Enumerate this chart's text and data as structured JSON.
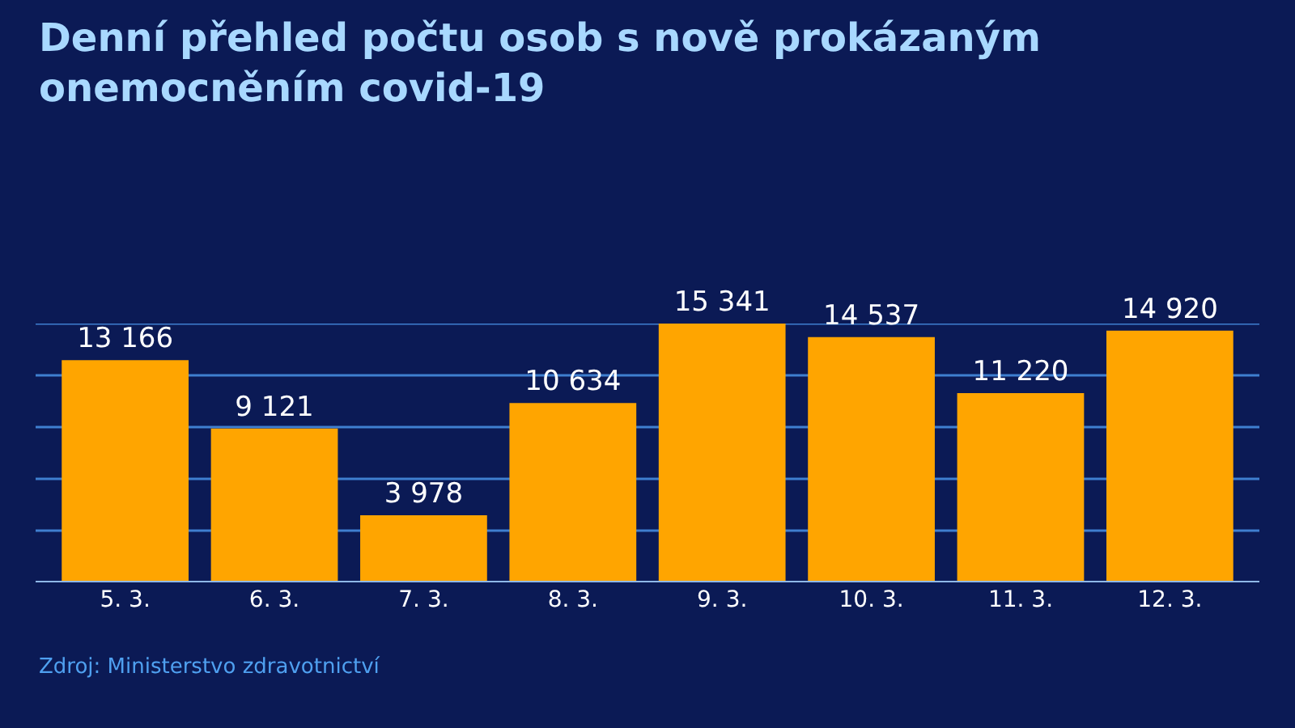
{
  "chart_data": {
    "type": "bar",
    "title": "Denní přehled počtu osob s nově prokázaným onemocněním covid-19",
    "categories": [
      "5. 3.",
      "6. 3.",
      "7. 3.",
      "8. 3.",
      "9. 3.",
      "10. 3.",
      "11. 3.",
      "12. 3."
    ],
    "values": [
      13166,
      9121,
      3978,
      10634,
      15341,
      14537,
      11220,
      14920
    ],
    "value_labels": [
      "13 166",
      "9 121",
      "3 978",
      "10 634",
      "15 341",
      "14 537",
      "11 220",
      "14 920"
    ],
    "color": "#ffa500",
    "ylim": [
      0,
      15341
    ],
    "yticks": [
      {
        "value": 0,
        "label": null
      },
      {
        "value": 3068,
        "label": null
      },
      {
        "value": 6136,
        "label": null
      },
      {
        "value": 9205,
        "label": null
      },
      {
        "value": 12273,
        "label": null
      },
      {
        "value": 15341,
        "label": null
      }
    ],
    "grid": "y",
    "tick_labels": "x",
    "annotations": [
      "Zdroj: Ministerstvo zdravotnictví"
    ]
  }
}
